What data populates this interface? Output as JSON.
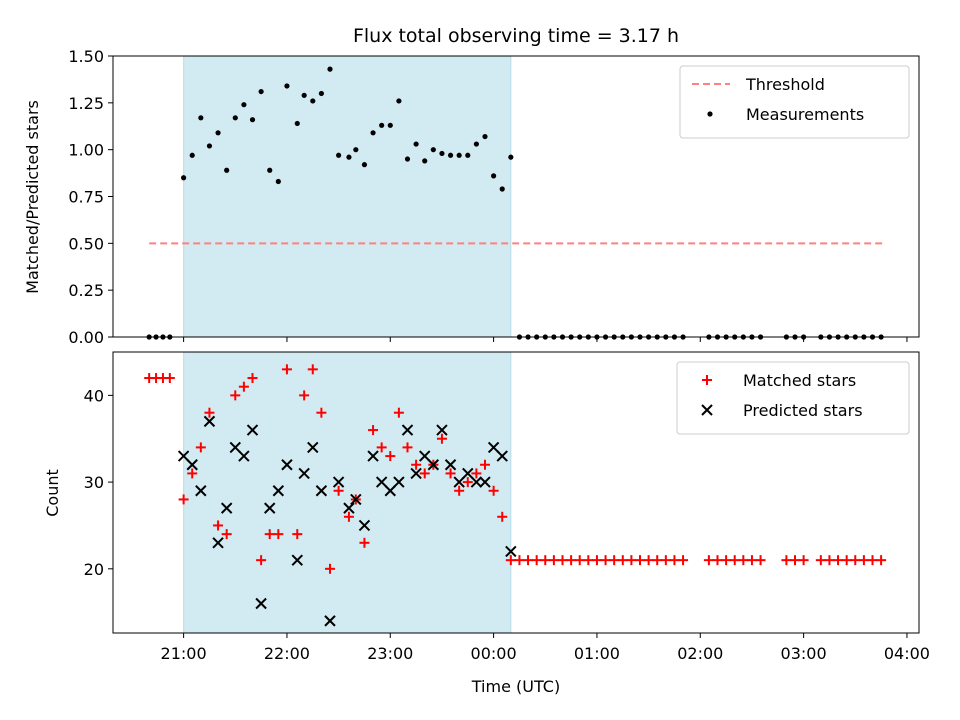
{
  "figure": {
    "title": "Flux total observing time = 3.17 h"
  },
  "chart_data": [
    {
      "type": "scatter",
      "panel": "top",
      "ylabel": "Matched/Predicted stars",
      "xlabel": "",
      "ylim": [
        0,
        1.5
      ],
      "yticks": [
        0.0,
        0.25,
        0.5,
        0.75,
        1.0,
        1.25,
        1.5
      ],
      "ytick_labels": [
        "0.00",
        "0.25",
        "0.50",
        "0.75",
        "1.00",
        "1.25",
        "1.50"
      ],
      "xlim": [
        "20:19",
        "04:07"
      ],
      "xticks": [
        "21:00",
        "22:00",
        "23:00",
        "00:00",
        "01:00",
        "02:00",
        "03:00",
        "04:00"
      ],
      "grid": false,
      "legend_position": "upper right",
      "shaded_interval": [
        "21:00",
        "00:10"
      ],
      "shade_color": "#add8e6",
      "threshold": {
        "name": "Threshold",
        "value": 0.5,
        "x_range": [
          "20:40",
          "03:47"
        ],
        "color": "#ff8080",
        "style": "dashed"
      },
      "series": [
        {
          "name": "Measurements",
          "color": "#000000",
          "marker": "dot",
          "points": [
            [
              "20:40",
              0.0
            ],
            [
              "20:44",
              0.0
            ],
            [
              "20:48",
              0.0
            ],
            [
              "20:52",
              0.0
            ],
            [
              "21:00",
              0.85
            ],
            [
              "21:05",
              0.97
            ],
            [
              "21:10",
              1.17
            ],
            [
              "21:15",
              1.02
            ],
            [
              "21:20",
              1.09
            ],
            [
              "21:25",
              0.89
            ],
            [
              "21:30",
              1.17
            ],
            [
              "21:35",
              1.24
            ],
            [
              "21:40",
              1.16
            ],
            [
              "21:45",
              1.31
            ],
            [
              "21:50",
              0.89
            ],
            [
              "21:55",
              0.83
            ],
            [
              "22:00",
              1.34
            ],
            [
              "22:06",
              1.14
            ],
            [
              "22:10",
              1.29
            ],
            [
              "22:15",
              1.26
            ],
            [
              "22:20",
              1.3
            ],
            [
              "22:25",
              1.43
            ],
            [
              "22:30",
              0.97
            ],
            [
              "22:36",
              0.96
            ],
            [
              "22:40",
              1.0
            ],
            [
              "22:45",
              0.92
            ],
            [
              "22:50",
              1.09
            ],
            [
              "22:55",
              1.13
            ],
            [
              "23:00",
              1.13
            ],
            [
              "23:05",
              1.26
            ],
            [
              "23:10",
              0.95
            ],
            [
              "23:15",
              1.03
            ],
            [
              "23:20",
              0.94
            ],
            [
              "23:25",
              1.0
            ],
            [
              "23:30",
              0.98
            ],
            [
              "23:35",
              0.97
            ],
            [
              "23:40",
              0.97
            ],
            [
              "23:45",
              0.97
            ],
            [
              "23:50",
              1.03
            ],
            [
              "23:55",
              1.07
            ],
            [
              "00:00",
              0.86
            ],
            [
              "00:05",
              0.79
            ],
            [
              "00:10",
              0.96
            ],
            [
              "00:15",
              0.0
            ],
            [
              "00:20",
              0.0
            ],
            [
              "00:25",
              0.0
            ],
            [
              "00:30",
              0.0
            ],
            [
              "00:35",
              0.0
            ],
            [
              "00:40",
              0.0
            ],
            [
              "00:45",
              0.0
            ],
            [
              "00:50",
              0.0
            ],
            [
              "00:55",
              0.0
            ],
            [
              "01:00",
              0.0
            ],
            [
              "01:05",
              0.0
            ],
            [
              "01:10",
              0.0
            ],
            [
              "01:15",
              0.0
            ],
            [
              "01:20",
              0.0
            ],
            [
              "01:25",
              0.0
            ],
            [
              "01:30",
              0.0
            ],
            [
              "01:35",
              0.0
            ],
            [
              "01:40",
              0.0
            ],
            [
              "01:45",
              0.0
            ],
            [
              "01:50",
              0.0
            ],
            [
              "02:05",
              0.0
            ],
            [
              "02:10",
              0.0
            ],
            [
              "02:15",
              0.0
            ],
            [
              "02:20",
              0.0
            ],
            [
              "02:25",
              0.0
            ],
            [
              "02:30",
              0.0
            ],
            [
              "02:35",
              0.0
            ],
            [
              "02:50",
              0.0
            ],
            [
              "02:55",
              0.0
            ],
            [
              "03:00",
              0.0
            ],
            [
              "03:10",
              0.0
            ],
            [
              "03:15",
              0.0
            ],
            [
              "03:20",
              0.0
            ],
            [
              "03:25",
              0.0
            ],
            [
              "03:30",
              0.0
            ],
            [
              "03:35",
              0.0
            ],
            [
              "03:40",
              0.0
            ],
            [
              "03:45",
              0.0
            ]
          ]
        }
      ]
    },
    {
      "type": "scatter",
      "panel": "bottom",
      "xlabel": "Time (UTC)",
      "ylabel": "Count",
      "ylim": [
        12.6,
        45
      ],
      "yticks": [
        20,
        30,
        40
      ],
      "ytick_labels": [
        "20",
        "30",
        "40"
      ],
      "xlim": [
        "20:19",
        "04:07"
      ],
      "xticks": [
        "21:00",
        "22:00",
        "23:00",
        "00:00",
        "01:00",
        "02:00",
        "03:00",
        "04:00"
      ],
      "xtick_labels": [
        "21:00",
        "22:00",
        "23:00",
        "00:00",
        "01:00",
        "02:00",
        "03:00",
        "04:00"
      ],
      "grid": false,
      "legend_position": "upper right",
      "shaded_interval": [
        "21:00",
        "00:10"
      ],
      "shade_color": "#add8e6",
      "series": [
        {
          "name": "Matched stars",
          "color": "#ff0000",
          "marker": "plus",
          "points": [
            [
              "20:40",
              42
            ],
            [
              "20:44",
              42
            ],
            [
              "20:48",
              42
            ],
            [
              "20:52",
              42
            ],
            [
              "21:00",
              28
            ],
            [
              "21:05",
              31
            ],
            [
              "21:10",
              34
            ],
            [
              "21:15",
              38
            ],
            [
              "21:20",
              25
            ],
            [
              "21:25",
              24
            ],
            [
              "21:30",
              40
            ],
            [
              "21:35",
              41
            ],
            [
              "21:40",
              42
            ],
            [
              "21:45",
              21
            ],
            [
              "21:50",
              24
            ],
            [
              "21:55",
              24
            ],
            [
              "22:00",
              43
            ],
            [
              "22:06",
              24
            ],
            [
              "22:10",
              40
            ],
            [
              "22:15",
              43
            ],
            [
              "22:20",
              38
            ],
            [
              "22:25",
              20
            ],
            [
              "22:30",
              29
            ],
            [
              "22:36",
              26
            ],
            [
              "22:40",
              28
            ],
            [
              "22:45",
              23
            ],
            [
              "22:50",
              36
            ],
            [
              "22:55",
              34
            ],
            [
              "23:00",
              33
            ],
            [
              "23:05",
              38
            ],
            [
              "23:10",
              34
            ],
            [
              "23:15",
              32
            ],
            [
              "23:20",
              31
            ],
            [
              "23:25",
              32
            ],
            [
              "23:30",
              35
            ],
            [
              "23:35",
              31
            ],
            [
              "23:40",
              29
            ],
            [
              "23:45",
              30
            ],
            [
              "23:50",
              31
            ],
            [
              "23:55",
              32
            ],
            [
              "00:00",
              29
            ],
            [
              "00:05",
              26
            ],
            [
              "00:10",
              21
            ],
            [
              "00:15",
              21
            ],
            [
              "00:20",
              21
            ],
            [
              "00:25",
              21
            ],
            [
              "00:30",
              21
            ],
            [
              "00:35",
              21
            ],
            [
              "00:40",
              21
            ],
            [
              "00:45",
              21
            ],
            [
              "00:50",
              21
            ],
            [
              "00:55",
              21
            ],
            [
              "01:00",
              21
            ],
            [
              "01:05",
              21
            ],
            [
              "01:10",
              21
            ],
            [
              "01:15",
              21
            ],
            [
              "01:20",
              21
            ],
            [
              "01:25",
              21
            ],
            [
              "01:30",
              21
            ],
            [
              "01:35",
              21
            ],
            [
              "01:40",
              21
            ],
            [
              "01:45",
              21
            ],
            [
              "01:50",
              21
            ],
            [
              "02:05",
              21
            ],
            [
              "02:10",
              21
            ],
            [
              "02:15",
              21
            ],
            [
              "02:20",
              21
            ],
            [
              "02:25",
              21
            ],
            [
              "02:30",
              21
            ],
            [
              "02:35",
              21
            ],
            [
              "02:50",
              21
            ],
            [
              "02:55",
              21
            ],
            [
              "03:00",
              21
            ],
            [
              "03:10",
              21
            ],
            [
              "03:15",
              21
            ],
            [
              "03:20",
              21
            ],
            [
              "03:25",
              21
            ],
            [
              "03:30",
              21
            ],
            [
              "03:35",
              21
            ],
            [
              "03:40",
              21
            ],
            [
              "03:45",
              21
            ]
          ]
        },
        {
          "name": "Predicted stars",
          "color": "#000000",
          "marker": "x",
          "points": [
            [
              "21:00",
              33
            ],
            [
              "21:05",
              32
            ],
            [
              "21:10",
              29
            ],
            [
              "21:15",
              37
            ],
            [
              "21:20",
              23
            ],
            [
              "21:25",
              27
            ],
            [
              "21:30",
              34
            ],
            [
              "21:35",
              33
            ],
            [
              "21:40",
              36
            ],
            [
              "21:45",
              16
            ],
            [
              "21:50",
              27
            ],
            [
              "21:55",
              29
            ],
            [
              "22:00",
              32
            ],
            [
              "22:06",
              21
            ],
            [
              "22:10",
              31
            ],
            [
              "22:15",
              34
            ],
            [
              "22:20",
              29
            ],
            [
              "22:25",
              14
            ],
            [
              "22:30",
              30
            ],
            [
              "22:36",
              27
            ],
            [
              "22:40",
              28
            ],
            [
              "22:45",
              25
            ],
            [
              "22:50",
              33
            ],
            [
              "22:55",
              30
            ],
            [
              "23:00",
              29
            ],
            [
              "23:05",
              30
            ],
            [
              "23:10",
              36
            ],
            [
              "23:15",
              31
            ],
            [
              "23:20",
              33
            ],
            [
              "23:25",
              32
            ],
            [
              "23:30",
              36
            ],
            [
              "23:35",
              32
            ],
            [
              "23:40",
              30
            ],
            [
              "23:45",
              31
            ],
            [
              "23:50",
              30
            ],
            [
              "23:55",
              30
            ],
            [
              "00:00",
              34
            ],
            [
              "00:05",
              33
            ],
            [
              "00:10",
              22
            ]
          ]
        }
      ]
    }
  ]
}
